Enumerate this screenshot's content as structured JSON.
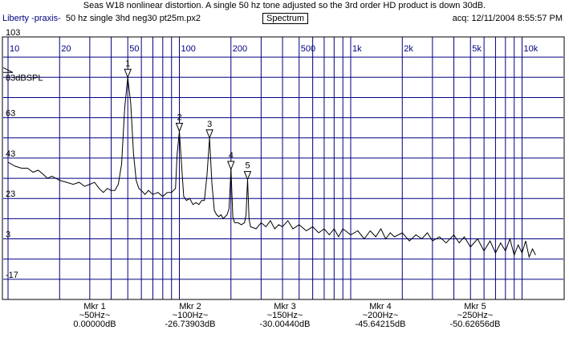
{
  "title": "Seas W18 nonlinear distortion. A single 50 hz tone adjusted so the 3rd order HD product is down 30dB.",
  "header": {
    "app": "Liberty -praxis-",
    "file": "50 hz single 3hd neg30 pt25m.px2",
    "mode": "Spectrum",
    "acq": "acq: 12/11/2004 8:55:57 PM"
  },
  "colors": {
    "grid": "#000080",
    "trace": "#000000",
    "background": "#ffffff"
  },
  "chart_data": {
    "type": "line",
    "xscale": "log",
    "xlim": [
      10,
      12500
    ],
    "ylim": [
      -27,
      103
    ],
    "reference_label": "83dBSPL",
    "x_ticks": [
      {
        "v": 10,
        "label": "10"
      },
      {
        "v": 20,
        "label": "20"
      },
      {
        "v": 50,
        "label": "50"
      },
      {
        "v": 100,
        "label": "100"
      },
      {
        "v": 200,
        "label": "200"
      },
      {
        "v": 500,
        "label": "500"
      },
      {
        "v": 1000,
        "label": "1k"
      },
      {
        "v": 2000,
        "label": "2k"
      },
      {
        "v": 5000,
        "label": "5k"
      },
      {
        "v": 10000,
        "label": "10k"
      }
    ],
    "y_ticks": [
      {
        "v": 103,
        "label": "103"
      },
      {
        "v": 63,
        "label": "63"
      },
      {
        "v": 43,
        "label": "43"
      },
      {
        "v": 23,
        "label": "23"
      },
      {
        "v": 3,
        "label": "3"
      },
      {
        "v": -17,
        "label": "-17"
      }
    ],
    "series": [
      {
        "values": [
          [
            10,
            41
          ],
          [
            11,
            39
          ],
          [
            12,
            38
          ],
          [
            13,
            38
          ],
          [
            14,
            36
          ],
          [
            15,
            37
          ],
          [
            16,
            35
          ],
          [
            17,
            33
          ],
          [
            18,
            34
          ],
          [
            19,
            33
          ],
          [
            20,
            32
          ],
          [
            22,
            31
          ],
          [
            24,
            30
          ],
          [
            26,
            31
          ],
          [
            28,
            29
          ],
          [
            30,
            30
          ],
          [
            32,
            31
          ],
          [
            34,
            28
          ],
          [
            36,
            26
          ],
          [
            38,
            28
          ],
          [
            40,
            27
          ],
          [
            42,
            27
          ],
          [
            44,
            30
          ],
          [
            46,
            40
          ],
          [
            48,
            68
          ],
          [
            50,
            83
          ],
          [
            52,
            70
          ],
          [
            54,
            45
          ],
          [
            56,
            32
          ],
          [
            58,
            28
          ],
          [
            60,
            27
          ],
          [
            63,
            25
          ],
          [
            66,
            27
          ],
          [
            70,
            25
          ],
          [
            75,
            26
          ],
          [
            80,
            24
          ],
          [
            85,
            26
          ],
          [
            90,
            26
          ],
          [
            95,
            28
          ],
          [
            97,
            45
          ],
          [
            100,
            56.3
          ],
          [
            103,
            40
          ],
          [
            106,
            24
          ],
          [
            110,
            22
          ],
          [
            115,
            23
          ],
          [
            120,
            20
          ],
          [
            125,
            21
          ],
          [
            130,
            20
          ],
          [
            135,
            22
          ],
          [
            140,
            22
          ],
          [
            145,
            35
          ],
          [
            150,
            53
          ],
          [
            155,
            30
          ],
          [
            160,
            17
          ],
          [
            165,
            15
          ],
          [
            170,
            14
          ],
          [
            175,
            15
          ],
          [
            180,
            13
          ],
          [
            185,
            14
          ],
          [
            190,
            15
          ],
          [
            195,
            18
          ],
          [
            200,
            37.4
          ],
          [
            205,
            14
          ],
          [
            210,
            11
          ],
          [
            220,
            11
          ],
          [
            230,
            10
          ],
          [
            240,
            11
          ],
          [
            245,
            15
          ],
          [
            250,
            32.4
          ],
          [
            255,
            13
          ],
          [
            260,
            9
          ],
          [
            280,
            8
          ],
          [
            300,
            11
          ],
          [
            320,
            9
          ],
          [
            340,
            12
          ],
          [
            360,
            8
          ],
          [
            380,
            10
          ],
          [
            400,
            9
          ],
          [
            430,
            12
          ],
          [
            460,
            8
          ],
          [
            500,
            10
          ],
          [
            550,
            7
          ],
          [
            600,
            9
          ],
          [
            650,
            6
          ],
          [
            700,
            8
          ],
          [
            750,
            5
          ],
          [
            800,
            8
          ],
          [
            850,
            4
          ],
          [
            900,
            8
          ],
          [
            1000,
            5
          ],
          [
            1100,
            7
          ],
          [
            1200,
            3
          ],
          [
            1300,
            7
          ],
          [
            1400,
            4
          ],
          [
            1500,
            8
          ],
          [
            1600,
            3
          ],
          [
            1700,
            6
          ],
          [
            1800,
            4
          ],
          [
            2000,
            6
          ],
          [
            2200,
            2
          ],
          [
            2400,
            5
          ],
          [
            2600,
            3
          ],
          [
            2800,
            6
          ],
          [
            3000,
            2
          ],
          [
            3300,
            4
          ],
          [
            3600,
            1
          ],
          [
            4000,
            5
          ],
          [
            4300,
            1
          ],
          [
            4600,
            4
          ],
          [
            5000,
            -1
          ],
          [
            5500,
            3
          ],
          [
            6000,
            -3
          ],
          [
            6500,
            2
          ],
          [
            7000,
            -4
          ],
          [
            7500,
            1
          ],
          [
            8000,
            -3
          ],
          [
            8500,
            3
          ],
          [
            9000,
            -5
          ],
          [
            9500,
            0
          ],
          [
            10000,
            -4
          ],
          [
            10500,
            2
          ],
          [
            11000,
            -6
          ],
          [
            11500,
            -2
          ],
          [
            12000,
            -5
          ]
        ]
      }
    ],
    "markers": [
      {
        "num": "1",
        "name": "Mkr 1",
        "freq": 50,
        "freq_label": "~50Hz~",
        "level": 83,
        "value_label": "0.00000dB"
      },
      {
        "num": "2",
        "name": "Mkr 2",
        "freq": 100,
        "freq_label": "~100Hz~",
        "level": 56.3,
        "value_label": "-26.73903dB"
      },
      {
        "num": "3",
        "name": "Mkr 3",
        "freq": 150,
        "freq_label": "~150Hz~",
        "level": 53,
        "value_label": "-30.00440dB"
      },
      {
        "num": "4",
        "name": "Mkr 4",
        "freq": 200,
        "freq_label": "~200Hz~",
        "level": 37.4,
        "value_label": "-45.64215dB"
      },
      {
        "num": "5",
        "name": "Mkr 5",
        "freq": 250,
        "freq_label": "~250Hz~",
        "level": 32.4,
        "value_label": "-50.62656dB"
      }
    ]
  }
}
